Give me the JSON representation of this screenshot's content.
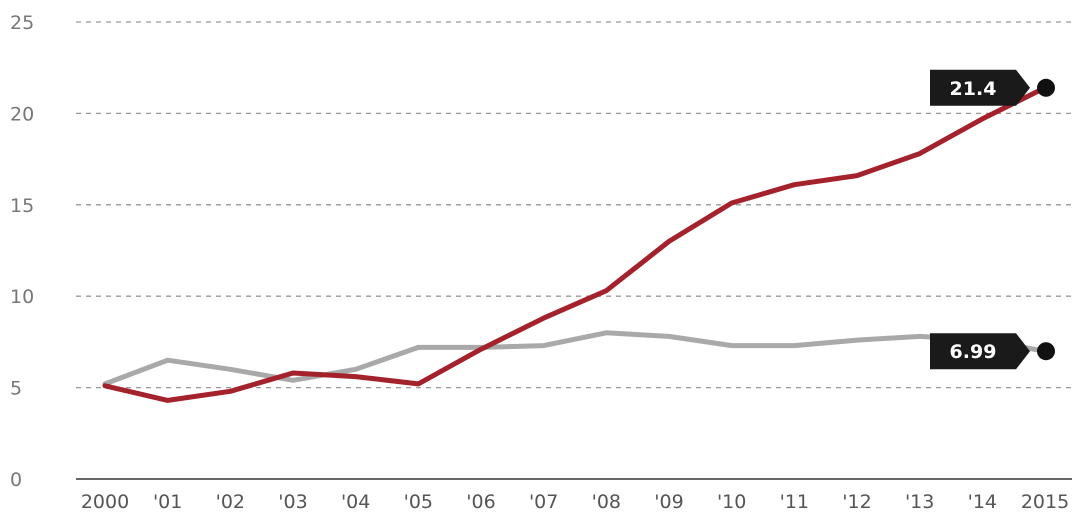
{
  "chart_data": {
    "type": "line",
    "title": "",
    "xlabel": "",
    "ylabel": "",
    "categories": [
      "2000",
      "'01",
      "'02",
      "'03",
      "'04",
      "'05",
      "'06",
      "'07",
      "'08",
      "'09",
      "'10",
      "'11",
      "'12",
      "'13",
      "'14",
      "2015"
    ],
    "ylim": [
      0,
      25
    ],
    "yticks": [
      "0",
      "5",
      "10",
      "15",
      "20",
      "25"
    ],
    "grid": "horizontal dashed",
    "series": [
      {
        "color": "#a3222c",
        "values": [
          5.1,
          4.3,
          4.8,
          5.8,
          5.6,
          5.2,
          7.1,
          8.8,
          10.3,
          13.0,
          15.1,
          16.1,
          16.6,
          17.8,
          19.7,
          21.4
        ],
        "end_label": "21.4"
      },
      {
        "color": "#a9a9a9",
        "values": [
          5.2,
          6.5,
          6.0,
          5.4,
          6.0,
          7.2,
          7.2,
          7.3,
          8.0,
          7.8,
          7.3,
          7.3,
          7.6,
          7.8,
          7.6,
          6.99
        ],
        "end_label": "6.99"
      }
    ]
  }
}
